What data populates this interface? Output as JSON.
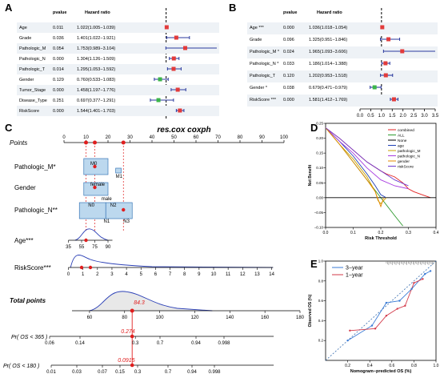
{
  "panels": {
    "A": "A",
    "B": "B",
    "C": "C",
    "D": "D",
    "E": "E"
  },
  "forest_headers": {
    "pvalue": "pvalue",
    "hr": "Hazard ratio"
  },
  "chart_data": [
    {
      "panel": "A",
      "type": "forest",
      "xlabel": "Hazard ratio",
      "xlim": [
        0.0,
        3.0
      ],
      "xticks": [
        "0.0",
        "0.5",
        "1.0",
        "1.5",
        "2.0",
        "2.5",
        "3.0"
      ],
      "reference_line": 1.0,
      "rows": [
        {
          "name": "Age",
          "p": "0.011",
          "hr_text": "1.022(1.005−1.039)",
          "hr": 1.022,
          "lo": 1.005,
          "hi": 1.039,
          "color": "#e23b3b"
        },
        {
          "name": "Grade",
          "p": "0.036",
          "hr_text": "1.401(1.022−1.921)",
          "hr": 1.401,
          "lo": 1.022,
          "hi": 1.921,
          "color": "#e23b3b"
        },
        {
          "name": "Pathologic_M",
          "p": "0.054",
          "hr_text": "1.753(0.989−3.104)",
          "hr": 1.753,
          "lo": 0.989,
          "hi": 3.104,
          "color": "#e23b3b"
        },
        {
          "name": "Pathologic_N",
          "p": "0.000",
          "hr_text": "1.304(1.126−1.509)",
          "hr": 1.304,
          "lo": 1.126,
          "hi": 1.509,
          "color": "#e23b3b"
        },
        {
          "name": "Pathologic_T",
          "p": "0.014",
          "hr_text": "1.295(1.053−1.592)",
          "hr": 1.295,
          "lo": 1.053,
          "hi": 1.592,
          "color": "#e23b3b"
        },
        {
          "name": "Gender",
          "p": "0.129",
          "hr_text": "0.760(0.533−1.083)",
          "hr": 0.76,
          "lo": 0.533,
          "hi": 1.083,
          "color": "#3bb54a"
        },
        {
          "name": "Tumor_Stage",
          "p": "0.000",
          "hr_text": "1.458(1.197−1.776)",
          "hr": 1.458,
          "lo": 1.197,
          "hi": 1.776,
          "color": "#e23b3b"
        },
        {
          "name": "Disease_Type",
          "p": "0.251",
          "hr_text": "0.697(0.377−1.291)",
          "hr": 0.697,
          "lo": 0.377,
          "hi": 1.291,
          "color": "#3bb54a"
        },
        {
          "name": "RiskScore",
          "p": "0.000",
          "hr_text": "1.544(1.401−1.703)",
          "hr": 1.544,
          "lo": 1.401,
          "hi": 1.703,
          "color": "#e23b3b"
        }
      ]
    },
    {
      "panel": "B",
      "type": "forest",
      "xlabel": "Hazard ratio",
      "xlim": [
        0.0,
        3.5
      ],
      "xticks": [
        "0.0",
        "0.5",
        "1.0",
        "1.5",
        "2.0",
        "2.5",
        "3.0",
        "3.5"
      ],
      "reference_line": 1.0,
      "rows": [
        {
          "name": "Age ***",
          "p": "0.000",
          "hr_text": "1.036(1.018−1.054)",
          "hr": 1.036,
          "lo": 1.018,
          "hi": 1.054,
          "color": "#e23b3b"
        },
        {
          "name": "Grade",
          "p": "0.096",
          "hr_text": "1.325(0.951−1.846)",
          "hr": 1.325,
          "lo": 0.951,
          "hi": 1.846,
          "color": "#e23b3b"
        },
        {
          "name": "Pathologic_M *",
          "p": "0.024",
          "hr_text": "1.965(1.093−3.606)",
          "hr": 1.965,
          "lo": 1.093,
          "hi": 3.606,
          "color": "#e23b3b"
        },
        {
          "name": "Pathologic_N *",
          "p": "0.033",
          "hr_text": "1.186(1.014−1.388)",
          "hr": 1.186,
          "lo": 1.014,
          "hi": 1.388,
          "color": "#e23b3b"
        },
        {
          "name": "Pathologic_T",
          "p": "0.120",
          "hr_text": "1.202(0.953−1.518)",
          "hr": 1.202,
          "lo": 0.953,
          "hi": 1.518,
          "color": "#e23b3b"
        },
        {
          "name": "Gender *",
          "p": "0.038",
          "hr_text": "0.679(0.471−0.979)",
          "hr": 0.679,
          "lo": 0.471,
          "hi": 0.979,
          "color": "#3bb54a"
        },
        {
          "name": "RiskScore ***",
          "p": "0.000",
          "hr_text": "1.581(1.412−1.769)",
          "hr": 1.581,
          "lo": 1.412,
          "hi": 1.769,
          "color": "#e23b3b"
        }
      ]
    },
    {
      "panel": "C",
      "type": "nomogram",
      "title": "res.cox coxph",
      "points_label": "Points",
      "points_ticks": [
        "0",
        "10",
        "20",
        "30",
        "40",
        "50",
        "60",
        "70",
        "80",
        "90",
        "100"
      ],
      "variables": [
        {
          "name": "Pathologic_M*",
          "labels": [
            "M0",
            "M1"
          ]
        },
        {
          "name": "Gender",
          "labels": [
            "female",
            "male"
          ]
        },
        {
          "name": "Pathologic_N**",
          "labels": [
            "N0",
            "N1",
            "N2",
            "N3"
          ]
        },
        {
          "name": "Age***",
          "ticks": [
            "35",
            "55",
            "75",
            "90"
          ]
        },
        {
          "name": "RiskScore***",
          "ticks": [
            "0",
            "1",
            "2",
            "3",
            "4",
            "5",
            "6",
            "7",
            "8",
            "9",
            "10",
            "11",
            "12",
            "13",
            "14"
          ]
        }
      ],
      "total_label": "Total points",
      "total_ticks": [
        "60",
        "80",
        "100",
        "120",
        "140",
        "160",
        "180"
      ],
      "total_value": "84.3",
      "os365_label": "Pr( OS < 365 )",
      "os365_ticks": [
        "0.06",
        "0.14",
        "0.3",
        "0.7",
        "0.94",
        "0.998"
      ],
      "os365_value": "0.274",
      "os180_label": "Pr( OS < 180 )",
      "os180_ticks": [
        "0.01",
        "0.03",
        "0.07",
        "0.15",
        "0.3",
        "0.7",
        "0.94",
        "0.998"
      ],
      "os180_value": "0.0915"
    },
    {
      "panel": "D",
      "type": "line",
      "title": "",
      "xlabel": "Risk Threshold",
      "ylabel": "Net Benefit",
      "xlim": [
        0.0,
        0.4
      ],
      "ylim": [
        -0.1,
        0.25
      ],
      "xticks": [
        "0.0",
        "0.1",
        "0.2",
        "0.3",
        "0.4"
      ],
      "yticks": [
        "−0.10",
        "−0.05",
        "0.00",
        "0.05",
        "0.10",
        "0.15",
        "0.20",
        "0.25"
      ],
      "legend_position": "top-right",
      "series": [
        {
          "name": "combined",
          "color": "#e32222",
          "x": [
            0,
            0.05,
            0.1,
            0.15,
            0.2,
            0.22,
            0.25,
            0.28,
            0.3,
            0.32,
            0.35,
            0.38
          ],
          "y": [
            0.235,
            0.2,
            0.16,
            0.12,
            0.09,
            0.08,
            0.07,
            0.05,
            0.03,
            0.02,
            0.01,
            0.0
          ]
        },
        {
          "name": "ALL",
          "color": "#2f9a2f",
          "x": [
            0,
            0.05,
            0.1,
            0.15,
            0.2,
            0.25,
            0.28
          ],
          "y": [
            0.235,
            0.18,
            0.12,
            0.06,
            0.0,
            -0.06,
            -0.095
          ]
        },
        {
          "name": "None",
          "color": "#000000",
          "x": [
            0,
            0.4
          ],
          "y": [
            0,
            0
          ]
        },
        {
          "name": "age",
          "color": "#1f3fb5",
          "x": [
            0,
            0.05,
            0.1,
            0.15,
            0.18,
            0.2,
            0.22
          ],
          "y": [
            0.235,
            0.19,
            0.14,
            0.08,
            0.04,
            0.01,
            0.0
          ]
        },
        {
          "name": "pathologic_M",
          "color": "#c8a000",
          "x": [
            0,
            0.05,
            0.1,
            0.15,
            0.18,
            0.19,
            0.2,
            0.22
          ],
          "y": [
            0.235,
            0.18,
            0.13,
            0.07,
            0.02,
            -0.01,
            -0.02,
            0.0
          ]
        },
        {
          "name": "pathologic_N",
          "color": "#a73be0",
          "x": [
            0,
            0.05,
            0.1,
            0.15,
            0.2,
            0.25,
            0.3
          ],
          "y": [
            0.235,
            0.19,
            0.15,
            0.1,
            0.06,
            0.04,
            0.03
          ]
        },
        {
          "name": "gender",
          "color": "#e58a00",
          "x": [
            0,
            0.05,
            0.1,
            0.15,
            0.18,
            0.2,
            0.21
          ],
          "y": [
            0.235,
            0.18,
            0.12,
            0.06,
            0.02,
            -0.03,
            0.0
          ]
        },
        {
          "name": "riskScore",
          "color": "#6d3bd1",
          "x": [
            0,
            0.05,
            0.1,
            0.15,
            0.2,
            0.25,
            0.3
          ],
          "y": [
            0.235,
            0.2,
            0.16,
            0.12,
            0.09,
            0.06,
            0.04
          ]
        }
      ]
    },
    {
      "panel": "E",
      "type": "line",
      "title": "",
      "xlabel": "Nomogram−predicted OS (%)",
      "ylabel": "Observed OS (%)",
      "xlim": [
        0.0,
        1.0
      ],
      "ylim": [
        0.0,
        1.0
      ],
      "xticks": [
        "0.2",
        "0.4",
        "0.6",
        "0.8",
        "1.0"
      ],
      "yticks": [
        "0.2",
        "0.4",
        "0.6",
        "0.8",
        "1.0"
      ],
      "legend_position": "top-left",
      "series": [
        {
          "name": "3−year",
          "color": "#3a7bd5",
          "x": [
            0.2,
            0.42,
            0.55,
            0.67,
            0.78,
            0.9,
            0.95
          ],
          "y": [
            0.2,
            0.35,
            0.58,
            0.6,
            0.72,
            0.87,
            0.9
          ]
        },
        {
          "name": "1−year",
          "color": "#d33a4a",
          "x": [
            0.22,
            0.45,
            0.55,
            0.65,
            0.72,
            0.8,
            0.88
          ],
          "y": [
            0.3,
            0.32,
            0.45,
            0.52,
            0.55,
            0.78,
            0.82
          ]
        }
      ]
    }
  ]
}
